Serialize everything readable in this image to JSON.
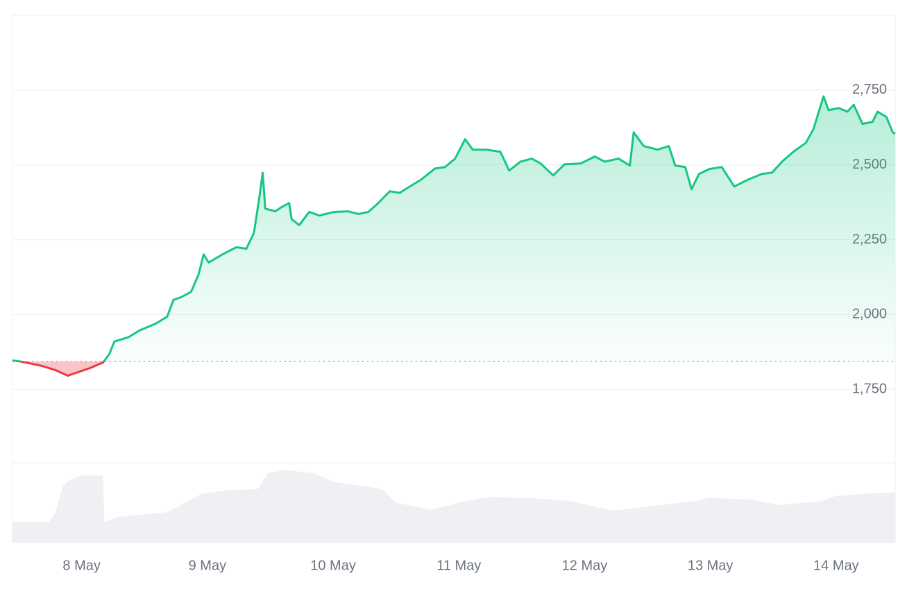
{
  "chart_data": {
    "type": "line",
    "x": [
      7.45,
      7.52,
      7.68,
      7.79,
      7.89,
      7.96,
      8.07,
      8.17,
      8.22,
      8.26,
      8.37,
      8.46,
      8.59,
      8.68,
      8.73,
      8.79,
      8.87,
      8.93,
      8.97,
      9.01,
      9.12,
      9.23,
      9.31,
      9.37,
      9.41,
      9.44,
      9.46,
      9.54,
      9.59,
      9.65,
      9.67,
      9.73,
      9.81,
      9.89,
      10.01,
      10.12,
      10.2,
      10.28,
      10.36,
      10.45,
      10.53,
      10.61,
      10.7,
      10.81,
      10.89,
      10.97,
      11.05,
      11.11,
      11.22,
      11.33,
      11.4,
      11.49,
      11.58,
      11.65,
      11.75,
      11.84,
      11.97,
      12.08,
      12.16,
      12.27,
      12.36,
      12.39,
      12.47,
      12.58,
      12.67,
      12.72,
      12.8,
      12.85,
      12.91,
      12.99,
      13.09,
      13.19,
      13.3,
      13.41,
      13.49,
      13.57,
      13.66,
      13.76,
      13.82,
      13.9,
      13.94,
      14.02,
      14.09,
      14.14,
      14.21,
      14.29,
      14.33,
      14.4,
      14.45,
      14.47
    ],
    "values": [
      1847,
      1843,
      1829,
      1815,
      1796,
      1806,
      1822,
      1840,
      1868,
      1910,
      1924,
      1947,
      1970,
      1993,
      2049,
      2058,
      2076,
      2134,
      2201,
      2174,
      2201,
      2225,
      2220,
      2273,
      2382,
      2474,
      2354,
      2345,
      2359,
      2373,
      2319,
      2299,
      2343,
      2331,
      2343,
      2345,
      2336,
      2343,
      2373,
      2412,
      2407,
      2428,
      2451,
      2488,
      2493,
      2521,
      2586,
      2551,
      2551,
      2544,
      2481,
      2511,
      2521,
      2505,
      2465,
      2502,
      2505,
      2528,
      2511,
      2521,
      2498,
      2609,
      2563,
      2551,
      2563,
      2498,
      2493,
      2419,
      2470,
      2486,
      2493,
      2428,
      2451,
      2470,
      2474,
      2511,
      2544,
      2574,
      2620,
      2729,
      2683,
      2690,
      2678,
      2701,
      2637,
      2644,
      2678,
      2660,
      2609,
      2604
    ],
    "color": "#16c784",
    "down_color": "#ea3943",
    "baseline": 1843,
    "xlim": [
      7.45,
      14.47
    ],
    "ylim": [
      1505,
      3000
    ],
    "yticks": [
      {
        "value": 1750,
        "label": "1,750"
      },
      {
        "value": 2000,
        "label": "2,000"
      },
      {
        "value": 2250,
        "label": "2,250"
      },
      {
        "value": 2500,
        "label": "2,500"
      },
      {
        "value": 2750,
        "label": "2,750"
      }
    ],
    "xticks": [
      {
        "value": 8,
        "label": "8 May"
      },
      {
        "value": 9,
        "label": "9 May"
      },
      {
        "value": 10,
        "label": "10 May"
      },
      {
        "value": 11,
        "label": "11 May"
      },
      {
        "value": 12,
        "label": "12 May"
      },
      {
        "value": 13,
        "label": "13 May"
      },
      {
        "value": 14,
        "label": "14 May"
      }
    ],
    "grid": true,
    "volume": {
      "color": "#eef0f3",
      "lim": [
        0,
        100
      ],
      "x": [
        7.45,
        7.74,
        7.79,
        7.85,
        7.9,
        8.0,
        8.17,
        8.18,
        8.29,
        8.68,
        8.79,
        8.95,
        9.18,
        9.4,
        9.48,
        9.62,
        9.84,
        10.01,
        10.23,
        10.39,
        10.5,
        10.78,
        11.0,
        11.22,
        11.55,
        11.89,
        12.22,
        12.55,
        12.88,
        12.99,
        13.32,
        13.55,
        13.88,
        13.99,
        14.21,
        14.47
      ],
      "values": [
        26,
        26,
        37,
        71,
        78,
        84,
        84,
        26,
        32,
        38,
        47,
        61,
        66,
        67,
        87,
        91,
        87,
        76,
        71,
        67,
        50,
        41,
        50,
        57,
        56,
        52,
        40,
        46,
        52,
        56,
        54,
        47,
        52,
        58,
        61,
        63
      ]
    }
  }
}
